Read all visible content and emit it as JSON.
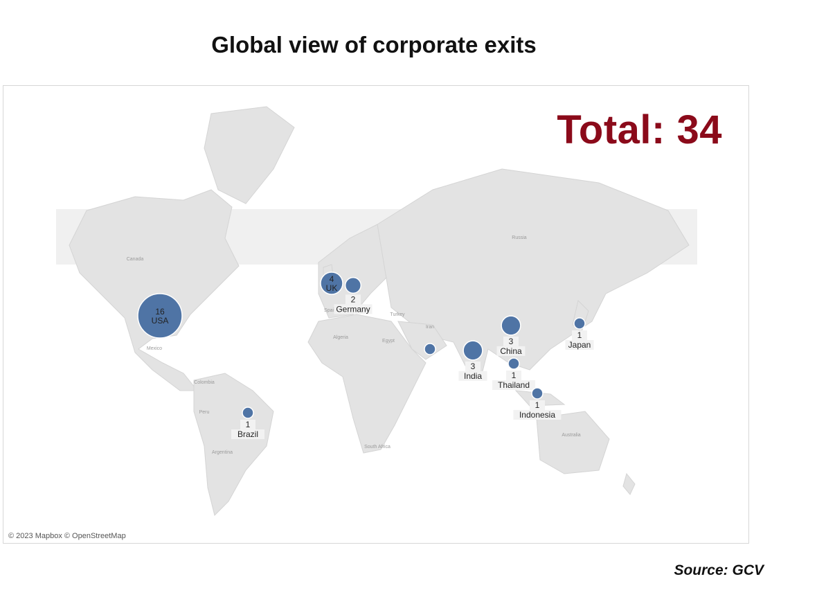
{
  "title": "Global view of corporate exits",
  "total_label": "Total: 34",
  "attribution": "© 2023 Mapbox © OpenStreetMap",
  "source": "Source: GCV",
  "colors": {
    "marker": "#4f74a5",
    "total": "#8b0a1a",
    "land": "#e3e3e3",
    "ocean": "#f4f4f4"
  },
  "geo_labels": [
    "Canada",
    "Russia",
    "Mexico",
    "Colombia",
    "Peru",
    "Argentina",
    "Algeria",
    "Egypt",
    "Turkey",
    "Iran",
    "Spain",
    "South Africa",
    "Australia"
  ],
  "markers": [
    {
      "name": "USA",
      "count": "16",
      "value": 16
    },
    {
      "name": "UK",
      "count": "4",
      "value": 4
    },
    {
      "name": "Germany",
      "count": "2",
      "value": 2
    },
    {
      "name": "China",
      "count": "3",
      "value": 3
    },
    {
      "name": "India",
      "count": "3",
      "value": 3
    },
    {
      "name": "Japan",
      "count": "1",
      "value": 1
    },
    {
      "name": "Thailand",
      "count": "1",
      "value": 1
    },
    {
      "name": "Indonesia",
      "count": "1",
      "value": 1
    },
    {
      "name": "Brazil",
      "count": "1",
      "value": 1
    },
    {
      "name": "",
      "count": "",
      "value": 1
    }
  ]
}
